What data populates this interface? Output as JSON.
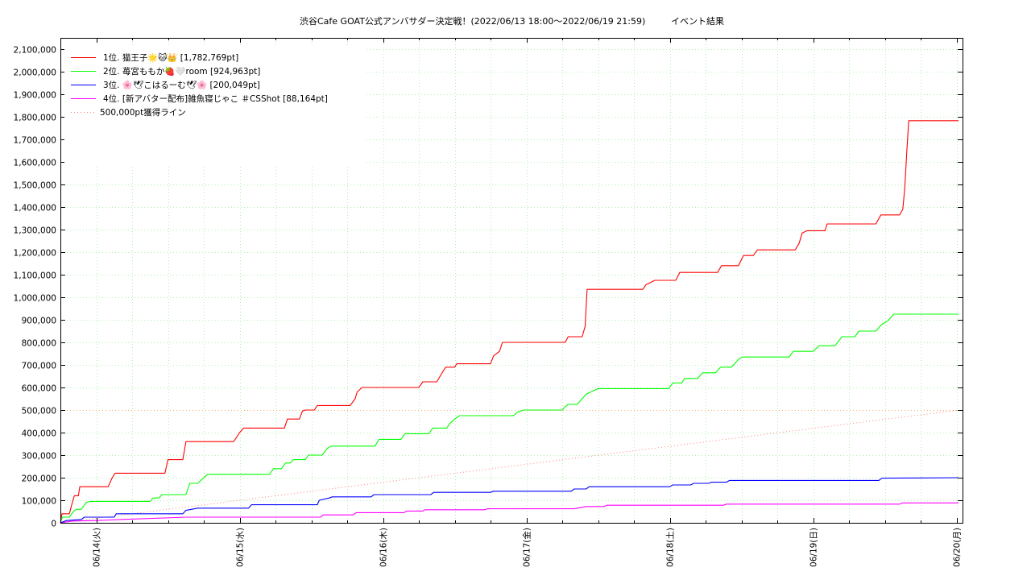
{
  "chart_data": {
    "type": "line",
    "title": "渋谷Cafe GOAT公式アンバサダー決定戦！(2022/06/13 18:00～2022/06/19 21:59)",
    "subtitle": "イベント結果",
    "xlabel": "",
    "ylabel": "",
    "x_ticks": [
      "06/14(火)",
      "06/15(水)",
      "06/16(木)",
      "06/17(金)",
      "06/18(土)",
      "06/19(日)",
      "06/20(月)"
    ],
    "xlim": [
      "2022-06-13 18:00",
      "2022-06-20 00:20"
    ],
    "ylim": [
      0,
      2150000
    ],
    "y_ticks": [
      "0",
      "100,000",
      "200,000",
      "300,000",
      "400,000",
      "500,000",
      "600,000",
      "700,000",
      "800,000",
      "900,000",
      "1,000,000",
      "1,100,000",
      "1,200,000",
      "1,300,000",
      "1,400,000",
      "1,500,000",
      "1,600,000",
      "1,700,000",
      "1,800,000",
      "1,900,000",
      "2,000,000",
      "2,100,000"
    ],
    "grid": true,
    "legend_position": "top-left",
    "series": [
      {
        "name": "1位. 猫王子🌟🐱👑 [1,782,769pt]",
        "color": "#ff0000",
        "points": [
          [
            "06-13 18:00",
            0
          ],
          [
            "06-13 18:15",
            40000
          ],
          [
            "06-13 19:30",
            40000
          ],
          [
            "06-13 20:00",
            90000
          ],
          [
            "06-13 20:20",
            120000
          ],
          [
            "06-13 21:00",
            120000
          ],
          [
            "06-13 21:15",
            160000
          ],
          [
            "06-14 02:00",
            160000
          ],
          [
            "06-14 02:40",
            200000
          ],
          [
            "06-14 03:10",
            220000
          ],
          [
            "06-14 11:30",
            220000
          ],
          [
            "06-14 12:00",
            280000
          ],
          [
            "06-14 14:30",
            280000
          ],
          [
            "06-14 15:00",
            360000
          ],
          [
            "06-14 23:00",
            360000
          ],
          [
            "06-15 00:00",
            400000
          ],
          [
            "06-15 00:40",
            420000
          ],
          [
            "06-15 07:30",
            420000
          ],
          [
            "06-15 08:00",
            460000
          ],
          [
            "06-15 10:00",
            460000
          ],
          [
            "06-15 10:30",
            495000
          ],
          [
            "06-15 11:00",
            500000
          ],
          [
            "06-15 12:30",
            500000
          ],
          [
            "06-15 13:00",
            520000
          ],
          [
            "06-15 18:30",
            520000
          ],
          [
            "06-15 19:20",
            550000
          ],
          [
            "06-15 19:40",
            580000
          ],
          [
            "06-15 20:30",
            600000
          ],
          [
            "06-16 06:00",
            600000
          ],
          [
            "06-16 06:40",
            625000
          ],
          [
            "06-16 09:00",
            625000
          ],
          [
            "06-16 10:00",
            670000
          ],
          [
            "06-16 10:30",
            690000
          ],
          [
            "06-16 12:00",
            690000
          ],
          [
            "06-16 12:20",
            705000
          ],
          [
            "06-16 18:00",
            705000
          ],
          [
            "06-16 18:30",
            740000
          ],
          [
            "06-16 19:30",
            760000
          ],
          [
            "06-16 20:00",
            800000
          ],
          [
            "06-17 06:30",
            800000
          ],
          [
            "06-17 07:00",
            825000
          ],
          [
            "06-17 09:20",
            825000
          ],
          [
            "06-17 09:50",
            870000
          ],
          [
            "06-17 10:10",
            1035000
          ],
          [
            "06-17 19:30",
            1035000
          ],
          [
            "06-17 20:00",
            1055000
          ],
          [
            "06-17 21:30",
            1075000
          ],
          [
            "06-18 01:00",
            1075000
          ],
          [
            "06-18 01:40",
            1110000
          ],
          [
            "06-18 08:00",
            1110000
          ],
          [
            "06-18 08:40",
            1140000
          ],
          [
            "06-18 11:30",
            1140000
          ],
          [
            "06-18 12:20",
            1185000
          ],
          [
            "06-18 14:00",
            1185000
          ],
          [
            "06-18 14:40",
            1210000
          ],
          [
            "06-18 21:00",
            1210000
          ],
          [
            "06-18 21:40",
            1240000
          ],
          [
            "06-18 22:10",
            1285000
          ],
          [
            "06-18 23:00",
            1295000
          ],
          [
            "06-19 02:00",
            1295000
          ],
          [
            "06-19 02:20",
            1325000
          ],
          [
            "06-19 10:30",
            1325000
          ],
          [
            "06-19 11:20",
            1365000
          ],
          [
            "06-19 14:30",
            1365000
          ],
          [
            "06-19 15:00",
            1390000
          ],
          [
            "06-19 15:20",
            1480000
          ],
          [
            "06-19 15:40",
            1640000
          ],
          [
            "06-19 16:00",
            1782769
          ],
          [
            "06-20 00:20",
            1782769
          ]
        ]
      },
      {
        "name": "2位. 苺宮ももか🍓🤍room [924,963pt]",
        "color": "#00ff00",
        "points": [
          [
            "06-13 18:00",
            0
          ],
          [
            "06-13 18:20",
            25000
          ],
          [
            "06-13 19:30",
            25000
          ],
          [
            "06-13 20:10",
            50000
          ],
          [
            "06-13 20:40",
            60000
          ],
          [
            "06-13 21:30",
            60000
          ],
          [
            "06-13 22:20",
            90000
          ],
          [
            "06-13 23:00",
            95000
          ],
          [
            "06-14 09:00",
            95000
          ],
          [
            "06-14 09:30",
            110000
          ],
          [
            "06-14 10:30",
            110000
          ],
          [
            "06-14 11:00",
            125000
          ],
          [
            "06-14 15:00",
            125000
          ],
          [
            "06-14 15:40",
            175000
          ],
          [
            "06-14 17:00",
            175000
          ],
          [
            "06-14 18:00",
            200000
          ],
          [
            "06-14 18:40",
            215000
          ],
          [
            "06-15 05:00",
            215000
          ],
          [
            "06-15 05:40",
            240000
          ],
          [
            "06-15 07:00",
            240000
          ],
          [
            "06-15 07:40",
            265000
          ],
          [
            "06-15 08:30",
            265000
          ],
          [
            "06-15 09:00",
            280000
          ],
          [
            "06-15 11:00",
            280000
          ],
          [
            "06-15 11:30",
            300000
          ],
          [
            "06-15 13:50",
            300000
          ],
          [
            "06-15 14:40",
            330000
          ],
          [
            "06-15 15:20",
            340000
          ],
          [
            "06-15 22:40",
            340000
          ],
          [
            "06-15 23:20",
            370000
          ],
          [
            "06-16 03:00",
            370000
          ],
          [
            "06-16 03:40",
            395000
          ],
          [
            "06-16 07:40",
            395000
          ],
          [
            "06-16 08:20",
            420000
          ],
          [
            "06-16 10:40",
            420000
          ],
          [
            "06-16 11:10",
            440000
          ],
          [
            "06-16 12:00",
            460000
          ],
          [
            "06-16 12:50",
            475000
          ],
          [
            "06-16 21:50",
            475000
          ],
          [
            "06-16 22:30",
            490000
          ],
          [
            "06-16 23:30",
            500000
          ],
          [
            "06-17 06:00",
            500000
          ],
          [
            "06-17 06:30",
            515000
          ],
          [
            "06-17 07:00",
            525000
          ],
          [
            "06-17 08:30",
            525000
          ],
          [
            "06-17 10:00",
            570000
          ],
          [
            "06-17 12:00",
            595000
          ],
          [
            "06-17 23:50",
            595000
          ],
          [
            "06-18 00:30",
            620000
          ],
          [
            "06-18 02:00",
            620000
          ],
          [
            "06-18 02:30",
            640000
          ],
          [
            "06-18 04:40",
            640000
          ],
          [
            "06-18 05:30",
            665000
          ],
          [
            "06-18 07:40",
            665000
          ],
          [
            "06-18 08:30",
            690000
          ],
          [
            "06-18 10:20",
            690000
          ],
          [
            "06-18 11:30",
            725000
          ],
          [
            "06-18 12:10",
            735000
          ],
          [
            "06-18 20:00",
            735000
          ],
          [
            "06-18 20:40",
            760000
          ],
          [
            "06-19 00:00",
            760000
          ],
          [
            "06-19 01:00",
            785000
          ],
          [
            "06-19 03:40",
            785000
          ],
          [
            "06-19 04:50",
            825000
          ],
          [
            "06-19 07:00",
            825000
          ],
          [
            "06-19 07:40",
            850000
          ],
          [
            "06-19 10:30",
            850000
          ],
          [
            "06-19 11:30",
            880000
          ],
          [
            "06-19 12:30",
            895000
          ],
          [
            "06-19 13:30",
            925000
          ],
          [
            "06-20 00:20",
            924963
          ]
        ]
      },
      {
        "name": "3位. 🌸🕊こはるーむ🕊🌸 [200,049pt]",
        "color": "#0000ff",
        "points": [
          [
            "06-13 18:00",
            0
          ],
          [
            "06-13 19:00",
            10000
          ],
          [
            "06-13 21:30",
            15000
          ],
          [
            "06-13 22:00",
            25000
          ],
          [
            "06-14 03:00",
            25000
          ],
          [
            "06-14 03:20",
            40000
          ],
          [
            "06-14 14:30",
            40000
          ],
          [
            "06-14 15:00",
            55000
          ],
          [
            "06-14 17:00",
            65000
          ],
          [
            "06-15 01:30",
            65000
          ],
          [
            "06-15 02:00",
            80000
          ],
          [
            "06-15 13:00",
            80000
          ],
          [
            "06-15 13:20",
            100000
          ],
          [
            "06-15 15:00",
            110000
          ],
          [
            "06-15 15:30",
            115000
          ],
          [
            "06-15 22:00",
            115000
          ],
          [
            "06-15 22:30",
            125000
          ],
          [
            "06-16 08:00",
            125000
          ],
          [
            "06-16 08:30",
            135000
          ],
          [
            "06-16 18:00",
            135000
          ],
          [
            "06-16 18:30",
            140000
          ],
          [
            "06-17 07:30",
            140000
          ],
          [
            "06-17 08:00",
            150000
          ],
          [
            "06-17 10:00",
            150000
          ],
          [
            "06-17 10:30",
            160000
          ],
          [
            "06-18 00:00",
            160000
          ],
          [
            "06-18 00:30",
            168000
          ],
          [
            "06-18 03:30",
            168000
          ],
          [
            "06-18 04:00",
            175000
          ],
          [
            "06-18 06:30",
            175000
          ],
          [
            "06-18 07:00",
            180000
          ],
          [
            "06-18 09:30",
            180000
          ],
          [
            "06-18 10:00",
            188000
          ],
          [
            "06-19 11:00",
            188000
          ],
          [
            "06-19 11:30",
            198000
          ],
          [
            "06-20 00:20",
            200049
          ]
        ]
      },
      {
        "name": "4位. [新アバター配布]雑魚寝じゃこ ＃CSShot [88,164pt]",
        "color": "#ff00ff",
        "points": [
          [
            "06-13 18:00",
            0
          ],
          [
            "06-13 20:00",
            8000
          ],
          [
            "06-14 00:00",
            10000
          ],
          [
            "06-14 04:30",
            15000
          ],
          [
            "06-14 15:00",
            25000
          ],
          [
            "06-15 13:30",
            25000
          ],
          [
            "06-15 14:00",
            35000
          ],
          [
            "06-15 19:00",
            35000
          ],
          [
            "06-15 19:30",
            45000
          ],
          [
            "06-16 03:30",
            45000
          ],
          [
            "06-16 04:00",
            52000
          ],
          [
            "06-16 06:40",
            52000
          ],
          [
            "06-16 07:00",
            58000
          ],
          [
            "06-16 17:00",
            58000
          ],
          [
            "06-16 17:30",
            62000
          ],
          [
            "06-17 08:00",
            62000
          ],
          [
            "06-17 10:00",
            72000
          ],
          [
            "06-17 13:00",
            72000
          ],
          [
            "06-17 13:30",
            78000
          ],
          [
            "06-18 09:00",
            78000
          ],
          [
            "06-18 09:30",
            83000
          ],
          [
            "06-19 14:30",
            83000
          ],
          [
            "06-19 15:00",
            88164
          ],
          [
            "06-20 00:20",
            88164
          ]
        ]
      }
    ],
    "reference_lines": [
      {
        "name": "500,000pt獲得ライン",
        "color": "#ff8080",
        "style": "dotted",
        "points": [
          [
            "06-13 18:00",
            0
          ],
          [
            "06-20 00:20",
            500000
          ]
        ]
      }
    ]
  }
}
